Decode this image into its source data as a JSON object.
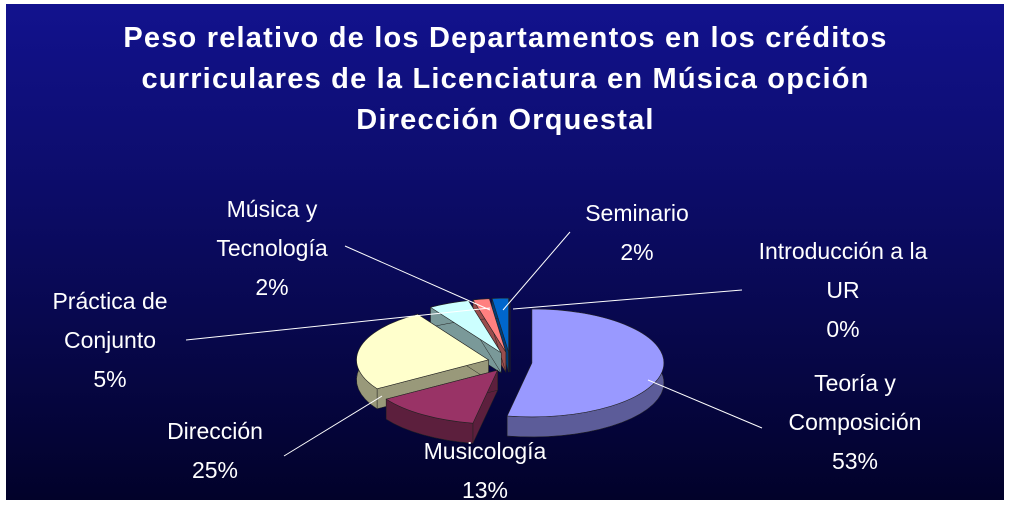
{
  "chart_data": {
    "type": "pie",
    "title": "Peso relativo de los Departamentos en los créditos curriculares de la Licenciatura en Música opción Dirección Orquestal",
    "categories": [
      "Teoría y Composición",
      "Musicología",
      "Dirección",
      "Práctica de Conjunto",
      "Música y Tecnología",
      "Seminario",
      "Introducción a la UR"
    ],
    "values": [
      53,
      13,
      25,
      5,
      2,
      2,
      0
    ],
    "value_labels": [
      "53%",
      "13%",
      "25%",
      "5%",
      "2%",
      "2%",
      "0%"
    ],
    "colors": [
      "#9999ff",
      "#993366",
      "#ffffcc",
      "#ccffff",
      "#ff8080",
      "#0066cc",
      "#c0c0c0"
    ]
  }
}
